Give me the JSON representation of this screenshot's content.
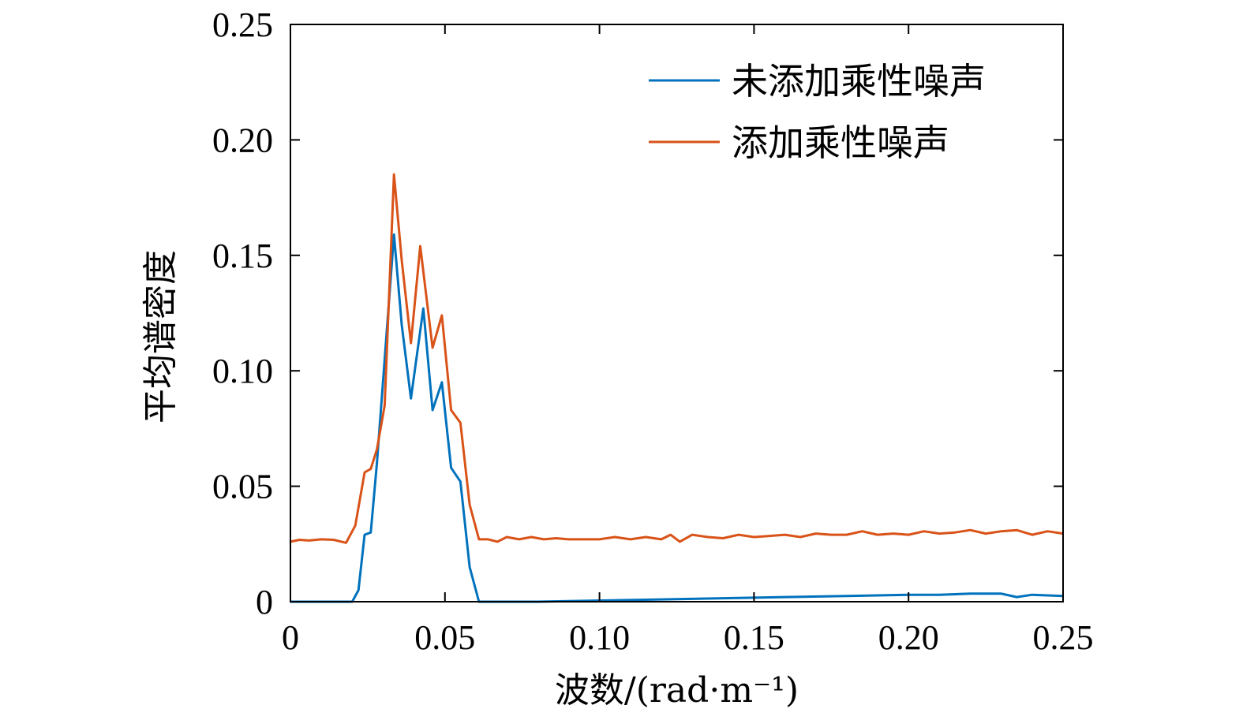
{
  "chart_data": {
    "type": "line",
    "title": "",
    "xlabel": "波数/(rad·m⁻¹)",
    "ylabel": "平均谱密度",
    "xlim": [
      0,
      0.25
    ],
    "ylim": [
      0,
      0.25
    ],
    "x_ticks": [
      0,
      0.05,
      0.1,
      0.15,
      0.2,
      0.25
    ],
    "x_tick_labels": [
      "0",
      "0.05",
      "0.10",
      "0.15",
      "0.20",
      "0.25"
    ],
    "y_ticks": [
      0,
      0.05,
      0.1,
      0.15,
      0.2,
      0.25
    ],
    "y_tick_labels": [
      "0",
      "0.05",
      "0.10",
      "0.15",
      "0.20",
      "0.25"
    ],
    "grid": false,
    "legend_position": "top-right",
    "series": [
      {
        "name": "未添加乘性噪声",
        "color": "#0072BD",
        "points": [
          [
            0,
            0
          ],
          [
            0.01,
            0
          ],
          [
            0.018,
            0
          ],
          [
            0.02,
            0
          ],
          [
            0.022,
            0.005
          ],
          [
            0.024,
            0.029
          ],
          [
            0.026,
            0.03
          ],
          [
            0.028,
            0.06
          ],
          [
            0.0335,
            0.159
          ],
          [
            0.036,
            0.12
          ],
          [
            0.039,
            0.088
          ],
          [
            0.043,
            0.127
          ],
          [
            0.046,
            0.083
          ],
          [
            0.049,
            0.095
          ],
          [
            0.052,
            0.058
          ],
          [
            0.055,
            0.052
          ],
          [
            0.058,
            0.015
          ],
          [
            0.061,
            0
          ],
          [
            0.08,
            0
          ],
          [
            0.1,
            0.0005
          ],
          [
            0.12,
            0.001
          ],
          [
            0.14,
            0.0015
          ],
          [
            0.16,
            0.002
          ],
          [
            0.18,
            0.0025
          ],
          [
            0.2,
            0.003
          ],
          [
            0.21,
            0.003
          ],
          [
            0.22,
            0.0035
          ],
          [
            0.23,
            0.0035
          ],
          [
            0.235,
            0.002
          ],
          [
            0.24,
            0.003
          ],
          [
            0.25,
            0.0025
          ]
        ]
      },
      {
        "name": "添加乘性噪声",
        "color": "#D95319",
        "points": [
          [
            0,
            0.026
          ],
          [
            0.003,
            0.0268
          ],
          [
            0.006,
            0.0265
          ],
          [
            0.01,
            0.027
          ],
          [
            0.014,
            0.0268
          ],
          [
            0.018,
            0.0255
          ],
          [
            0.021,
            0.033
          ],
          [
            0.024,
            0.056
          ],
          [
            0.026,
            0.0575
          ],
          [
            0.028,
            0.066
          ],
          [
            0.0305,
            0.085
          ],
          [
            0.0335,
            0.185
          ],
          [
            0.036,
            0.148
          ],
          [
            0.039,
            0.112
          ],
          [
            0.042,
            0.154
          ],
          [
            0.046,
            0.11
          ],
          [
            0.049,
            0.124
          ],
          [
            0.052,
            0.083
          ],
          [
            0.055,
            0.0775
          ],
          [
            0.058,
            0.042
          ],
          [
            0.061,
            0.027
          ],
          [
            0.064,
            0.027
          ],
          [
            0.067,
            0.026
          ],
          [
            0.07,
            0.028
          ],
          [
            0.074,
            0.027
          ],
          [
            0.078,
            0.028
          ],
          [
            0.082,
            0.027
          ],
          [
            0.086,
            0.0275
          ],
          [
            0.09,
            0.027
          ],
          [
            0.095,
            0.027
          ],
          [
            0.1,
            0.027
          ],
          [
            0.105,
            0.028
          ],
          [
            0.11,
            0.027
          ],
          [
            0.115,
            0.028
          ],
          [
            0.12,
            0.027
          ],
          [
            0.123,
            0.029
          ],
          [
            0.126,
            0.026
          ],
          [
            0.13,
            0.029
          ],
          [
            0.135,
            0.028
          ],
          [
            0.14,
            0.0275
          ],
          [
            0.145,
            0.029
          ],
          [
            0.15,
            0.028
          ],
          [
            0.155,
            0.0285
          ],
          [
            0.16,
            0.029
          ],
          [
            0.165,
            0.028
          ],
          [
            0.17,
            0.0295
          ],
          [
            0.175,
            0.029
          ],
          [
            0.18,
            0.029
          ],
          [
            0.185,
            0.0305
          ],
          [
            0.19,
            0.029
          ],
          [
            0.195,
            0.0295
          ],
          [
            0.2,
            0.029
          ],
          [
            0.205,
            0.0305
          ],
          [
            0.21,
            0.0295
          ],
          [
            0.215,
            0.03
          ],
          [
            0.22,
            0.031
          ],
          [
            0.225,
            0.0295
          ],
          [
            0.23,
            0.0305
          ],
          [
            0.235,
            0.031
          ],
          [
            0.24,
            0.029
          ],
          [
            0.245,
            0.0305
          ],
          [
            0.25,
            0.0295
          ]
        ]
      }
    ]
  }
}
